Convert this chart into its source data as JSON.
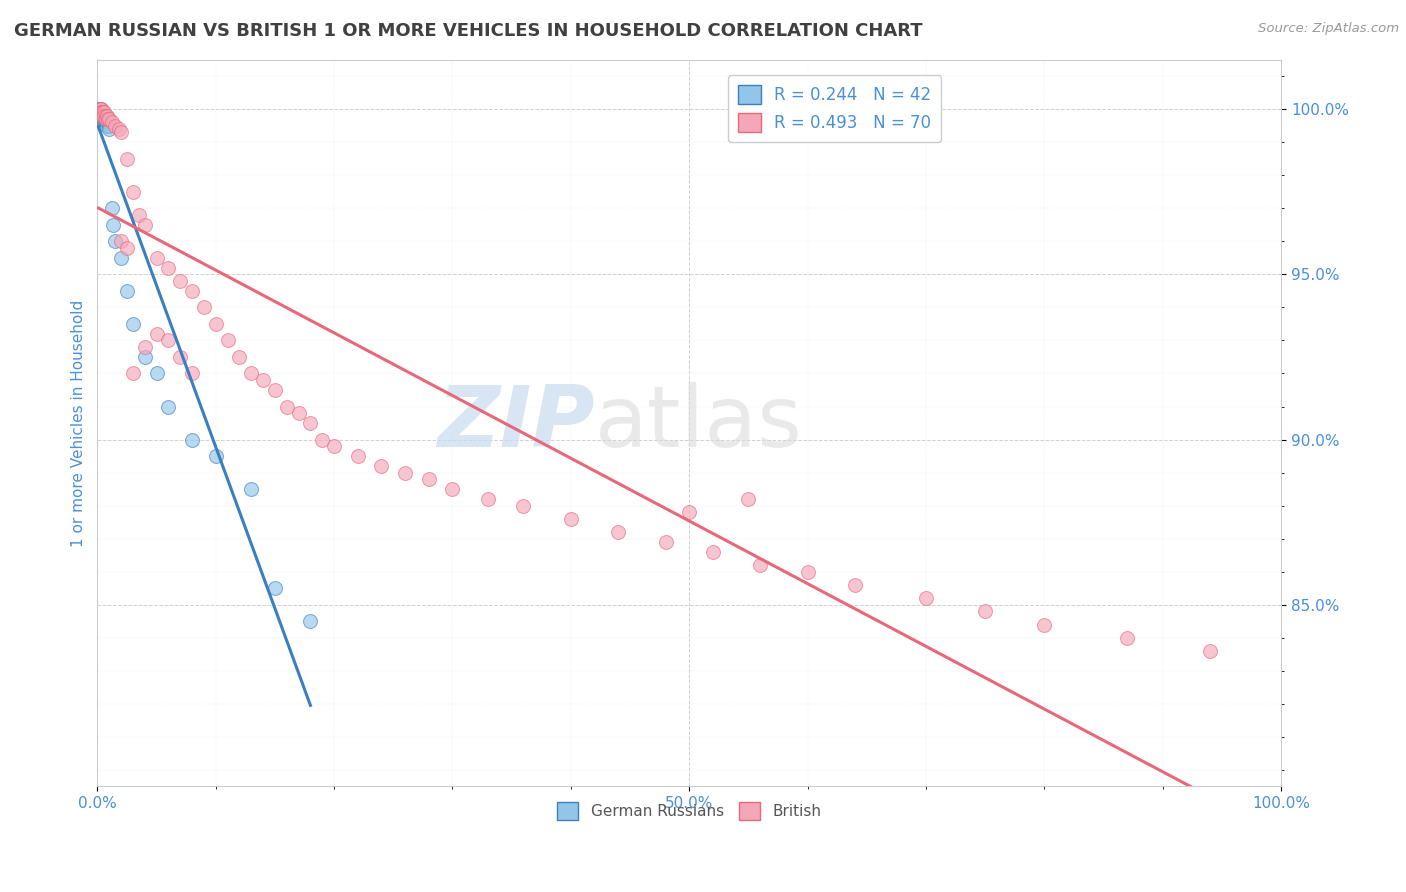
{
  "title": "GERMAN RUSSIAN VS BRITISH 1 OR MORE VEHICLES IN HOUSEHOLD CORRELATION CHART",
  "source": "Source: ZipAtlas.com",
  "ylabel": "1 or more Vehicles in Household",
  "xlim": [
    0.0,
    1.0
  ],
  "ylim": [
    0.795,
    1.015
  ],
  "ytick_values": [
    0.85,
    0.9,
    0.95,
    1.0
  ],
  "ytick_labels": [
    "85.0%",
    "90.0%",
    "95.0%",
    "100.0%"
  ],
  "legend_r1": "R = 0.244",
  "legend_n1": "N = 42",
  "legend_r2": "R = 0.493",
  "legend_n2": "N = 70",
  "color_blue": "#92C5E8",
  "color_pink": "#F4A7B9",
  "color_blue_line": "#3A7FC1",
  "color_pink_line": "#E8687A",
  "color_title": "#404040",
  "color_axis_label": "#4A90D9",
  "color_legend_text_dark": "#333333",
  "watermark_zip": "ZIP",
  "watermark_atlas": "atlas",
  "background_color": "#FFFFFF",
  "german_russian_x": [
    0.001,
    0.001,
    0.001,
    0.002,
    0.002,
    0.002,
    0.002,
    0.002,
    0.002,
    0.003,
    0.003,
    0.003,
    0.003,
    0.004,
    0.004,
    0.004,
    0.005,
    0.005,
    0.005,
    0.006,
    0.006,
    0.007,
    0.007,
    0.008,
    0.008,
    0.009,
    0.01,
    0.01,
    0.012,
    0.013,
    0.015,
    0.02,
    0.025,
    0.03,
    0.04,
    0.05,
    0.06,
    0.08,
    0.1,
    0.13,
    0.15,
    0.18
  ],
  "german_russian_y": [
    1.0,
    1.0,
    1.0,
    1.0,
    1.0,
    0.999,
    0.999,
    0.998,
    0.997,
    1.0,
    0.999,
    0.998,
    0.997,
    0.999,
    0.998,
    0.997,
    0.999,
    0.998,
    0.997,
    0.998,
    0.997,
    0.998,
    0.996,
    0.997,
    0.995,
    0.996,
    0.995,
    0.994,
    0.97,
    0.965,
    0.96,
    0.955,
    0.945,
    0.935,
    0.925,
    0.92,
    0.91,
    0.9,
    0.895,
    0.885,
    0.855,
    0.845
  ],
  "british_x": [
    0.001,
    0.001,
    0.002,
    0.002,
    0.003,
    0.003,
    0.004,
    0.004,
    0.005,
    0.005,
    0.006,
    0.006,
    0.007,
    0.007,
    0.008,
    0.009,
    0.01,
    0.012,
    0.015,
    0.018,
    0.02,
    0.025,
    0.03,
    0.035,
    0.04,
    0.05,
    0.06,
    0.07,
    0.08,
    0.09,
    0.1,
    0.11,
    0.12,
    0.13,
    0.14,
    0.15,
    0.16,
    0.17,
    0.18,
    0.19,
    0.2,
    0.22,
    0.24,
    0.26,
    0.28,
    0.3,
    0.33,
    0.36,
    0.4,
    0.44,
    0.48,
    0.52,
    0.56,
    0.6,
    0.64,
    0.7,
    0.75,
    0.8,
    0.87,
    0.94,
    0.02,
    0.025,
    0.03,
    0.04,
    0.05,
    0.5,
    0.55,
    0.06,
    0.07,
    0.08
  ],
  "british_y": [
    1.0,
    0.999,
    1.0,
    0.999,
    1.0,
    0.999,
    0.999,
    0.998,
    0.999,
    0.998,
    0.999,
    0.998,
    0.998,
    0.997,
    0.998,
    0.997,
    0.997,
    0.996,
    0.995,
    0.994,
    0.993,
    0.985,
    0.975,
    0.968,
    0.965,
    0.955,
    0.952,
    0.948,
    0.945,
    0.94,
    0.935,
    0.93,
    0.925,
    0.92,
    0.918,
    0.915,
    0.91,
    0.908,
    0.905,
    0.9,
    0.898,
    0.895,
    0.892,
    0.89,
    0.888,
    0.885,
    0.882,
    0.88,
    0.876,
    0.872,
    0.869,
    0.866,
    0.862,
    0.86,
    0.856,
    0.852,
    0.848,
    0.844,
    0.84,
    0.836,
    0.96,
    0.958,
    0.92,
    0.928,
    0.932,
    0.878,
    0.882,
    0.93,
    0.925,
    0.92
  ]
}
